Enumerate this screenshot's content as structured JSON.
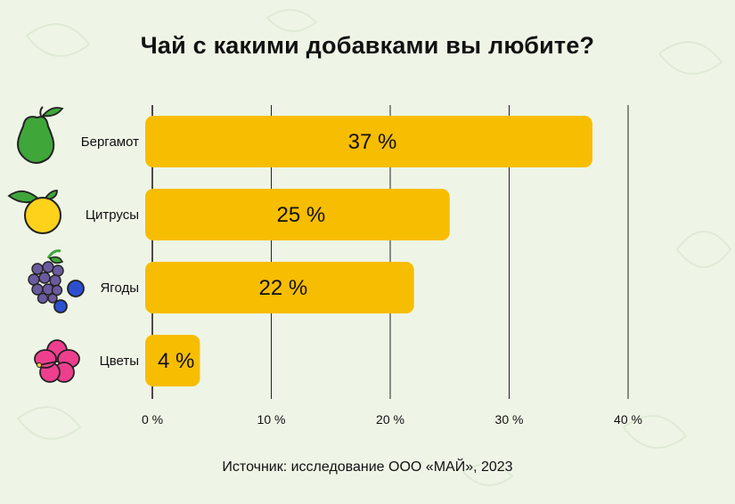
{
  "title": "Чай с какими добавками вы любите?",
  "source": "Источник: исследование ООО «МАЙ», 2023",
  "colors": {
    "bar": "#f7bd00",
    "background": "#eef5e6",
    "grid": "#222222"
  },
  "icons": [
    "pear-icon",
    "orange-icon",
    "berries-icon",
    "hibiscus-flower-icon"
  ],
  "chart_data": {
    "type": "bar",
    "orientation": "horizontal",
    "categories": [
      "Бергамот",
      "Цитрусы",
      "Ягоды",
      "Цветы"
    ],
    "values": [
      37,
      25,
      22,
      4
    ],
    "value_labels": [
      "37 %",
      "25 %",
      "22 %",
      "4 %"
    ],
    "xlim": [
      0,
      40
    ],
    "xticks": [
      0,
      10,
      20,
      30,
      40
    ],
    "xtick_labels": [
      "0 %",
      "10 %",
      "20 %",
      "30 %",
      "40 %"
    ],
    "grid": true,
    "title": "Чай с какими добавками вы любите?",
    "xlabel": "",
    "ylabel": ""
  }
}
